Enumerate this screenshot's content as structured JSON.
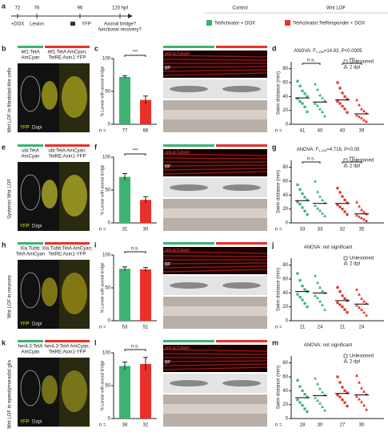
{
  "panel_a": {
    "letter": "a",
    "times": [
      "72",
      "76",
      "96",
      "120 hpf"
    ],
    "events": [
      "+DOX",
      "Lesion",
      "YFP"
    ],
    "question": [
      "Axonal bridge?",
      "functional recovery?"
    ],
    "legend": {
      "control": "Control",
      "wnt": "Wnt LOF",
      "control_label": "TetActivator + DOX",
      "wnt_label": "TetActivator;TetResponder + DOX",
      "control_color": "#3cb371",
      "wnt_color": "#e8312a"
    }
  },
  "rows": [
    {
      "letters": [
        "b",
        "c",
        "d"
      ],
      "side": "Wnt LOF in fibroblast-like cells",
      "img_left": [
        "lef1:TetA",
        "AmCyan"
      ],
      "img_right": [
        "lef1:TetA AmCyan;",
        "TetRE:Axin1-YFP"
      ],
      "img_glow": "#d8d020",
      "bar": {
        "ylabel": "% Larvae with axonal bridge",
        "values": [
          72,
          37
        ],
        "errors": [
          2,
          6
        ],
        "n": [
          77,
          66
        ],
        "sig": "***",
        "ylim": [
          0,
          100
        ],
        "yticks": [
          0,
          50,
          100
        ]
      },
      "scatter": {
        "anova": {
          "pre": "ANOVA: F",
          "sub": "1,156",
          "post": "=14.82, P<0.0005"
        },
        "ylabel": "Swim distance (mm)",
        "ylim": [
          0,
          90
        ],
        "yticks": [
          0,
          20,
          40,
          60,
          80
        ],
        "means": [
          38,
          32,
          35,
          15
        ],
        "n": [
          41,
          40,
          40,
          39
        ],
        "sig": [
          "n.s.",
          "***"
        ],
        "points": [
          [
            62,
            55,
            48,
            44,
            40,
            37,
            33,
            30,
            25,
            18
          ],
          [
            58,
            50,
            42,
            38,
            34,
            30,
            27,
            22,
            18,
            12
          ],
          [
            60,
            52,
            45,
            40,
            36,
            33,
            30,
            26,
            22,
            17
          ],
          [
            35,
            28,
            22,
            19,
            16,
            13,
            11,
            9,
            6,
            4
          ]
        ]
      }
    },
    {
      "letters": [
        "e",
        "f",
        "g"
      ],
      "side": "Systemic Wnt LOF",
      "img_left": [
        "ubi:TetA",
        "AmCyan"
      ],
      "img_right": [
        "ubi:TetA AmCyan;",
        "TetRE:Axin1-YFP"
      ],
      "img_glow": "#e8e030",
      "bar": {
        "ylabel": "% Larvae with axonal bridge",
        "values": [
          70,
          35
        ],
        "errors": [
          5,
          5
        ],
        "n": [
          31,
          30
        ],
        "sig": "***",
        "ylim": [
          0,
          100
        ],
        "yticks": [
          0,
          50,
          100
        ]
      },
      "scatter": {
        "anova": {
          "pre": "ANOVA: F",
          "sub": "1,126",
          "post": "=4.716, P<0.05"
        },
        "ylabel": "Swim distance (mm)",
        "ylim": [
          0,
          90
        ],
        "yticks": [
          0,
          20,
          40,
          60,
          80
        ],
        "means": [
          32,
          28,
          28,
          13
        ],
        "n": [
          33,
          33,
          32,
          35
        ],
        "sig": [
          "n.s.",
          "***"
        ],
        "points": [
          [
            55,
            48,
            42,
            37,
            33,
            30,
            27,
            22,
            17,
            12
          ],
          [
            60,
            45,
            38,
            33,
            29,
            25,
            21,
            18,
            14,
            10
          ],
          [
            50,
            44,
            38,
            33,
            29,
            26,
            23,
            20,
            16,
            12
          ],
          [
            30,
            24,
            19,
            16,
            13,
            11,
            9,
            7,
            5,
            3
          ]
        ]
      }
    },
    {
      "letters": [
        "h",
        "i",
        "j"
      ],
      "side": "Wnt LOF in neurons",
      "img_left": [
        "Xla.Tubb:",
        "TetA AmCyan"
      ],
      "img_right": [
        "Xla.Tubb:TetA AmCyan;",
        "TetRE:Axin1-YFP"
      ],
      "img_glow": "#c8b818",
      "bar": {
        "ylabel": "% Larvae with axonal bridge",
        "values": [
          79,
          78
        ],
        "errors": [
          3,
          3
        ],
        "n": [
          53,
          51
        ],
        "sig": "n.s.",
        "ylim": [
          0,
          100
        ],
        "yticks": [
          0,
          50,
          100
        ]
      },
      "scatter": {
        "anova": {
          "pre": "ANOVA: not significant"
        },
        "ylabel": "Swim distance (mm)",
        "ylim": [
          0,
          90
        ],
        "yticks": [
          0,
          20,
          40,
          60,
          80
        ],
        "means": [
          42,
          40,
          29,
          24
        ],
        "n": [
          21,
          24,
          21,
          24
        ],
        "points": [
          [
            68,
            58,
            50,
            45,
            42,
            38,
            34,
            30,
            25,
            20
          ],
          [
            65,
            55,
            48,
            43,
            40,
            36,
            33,
            28,
            23,
            16
          ],
          [
            48,
            42,
            36,
            32,
            29,
            26,
            23,
            20,
            16,
            12
          ],
          [
            45,
            38,
            32,
            28,
            25,
            22,
            19,
            16,
            12,
            8
          ]
        ]
      }
    },
    {
      "letters": [
        "k",
        "l",
        "m"
      ],
      "side": "Wnt LOF in ependymoradial glia",
      "img_left": [
        "her4.3:TetA",
        "AmCyan"
      ],
      "img_right": [
        "her4.3:TetA AmCyan;",
        "TetRE:Axin1-YFP"
      ],
      "img_glow": "#b8b020",
      "bar": {
        "ylabel": "% Larvae with axonal bridge",
        "values": [
          80,
          83
        ],
        "errors": [
          6,
          10
        ],
        "n": [
          38,
          32
        ],
        "sig": "n.s.",
        "ylim": [
          0,
          100
        ],
        "yticks": [
          0,
          50,
          100
        ]
      },
      "scatter": {
        "anova": {
          "pre": "ANOVA: not significant"
        },
        "ylabel": "Swim distance (mm)",
        "ylim": [
          0,
          90
        ],
        "yticks": [
          0,
          20,
          40,
          60,
          80
        ],
        "means": [
          30,
          33,
          36,
          34
        ],
        "n": [
          28,
          30,
          27,
          30
        ],
        "points": [
          [
            55,
            46,
            40,
            35,
            31,
            27,
            23,
            19,
            14,
            10
          ],
          [
            58,
            50,
            43,
            38,
            34,
            30,
            26,
            22,
            17,
            12
          ],
          [
            60,
            52,
            45,
            40,
            37,
            34,
            31,
            27,
            23,
            18
          ],
          [
            62,
            52,
            44,
            39,
            35,
            32,
            28,
            24,
            19,
            13
          ]
        ]
      }
    }
  ],
  "labels": {
    "n": "n =",
    "yfp": "YFP",
    "dapi": "Dapi",
    "bf": "BF",
    "tub": "anti-acTubulin",
    "unlesioned": "Unlesioned",
    "dpl": "2 dpl"
  }
}
